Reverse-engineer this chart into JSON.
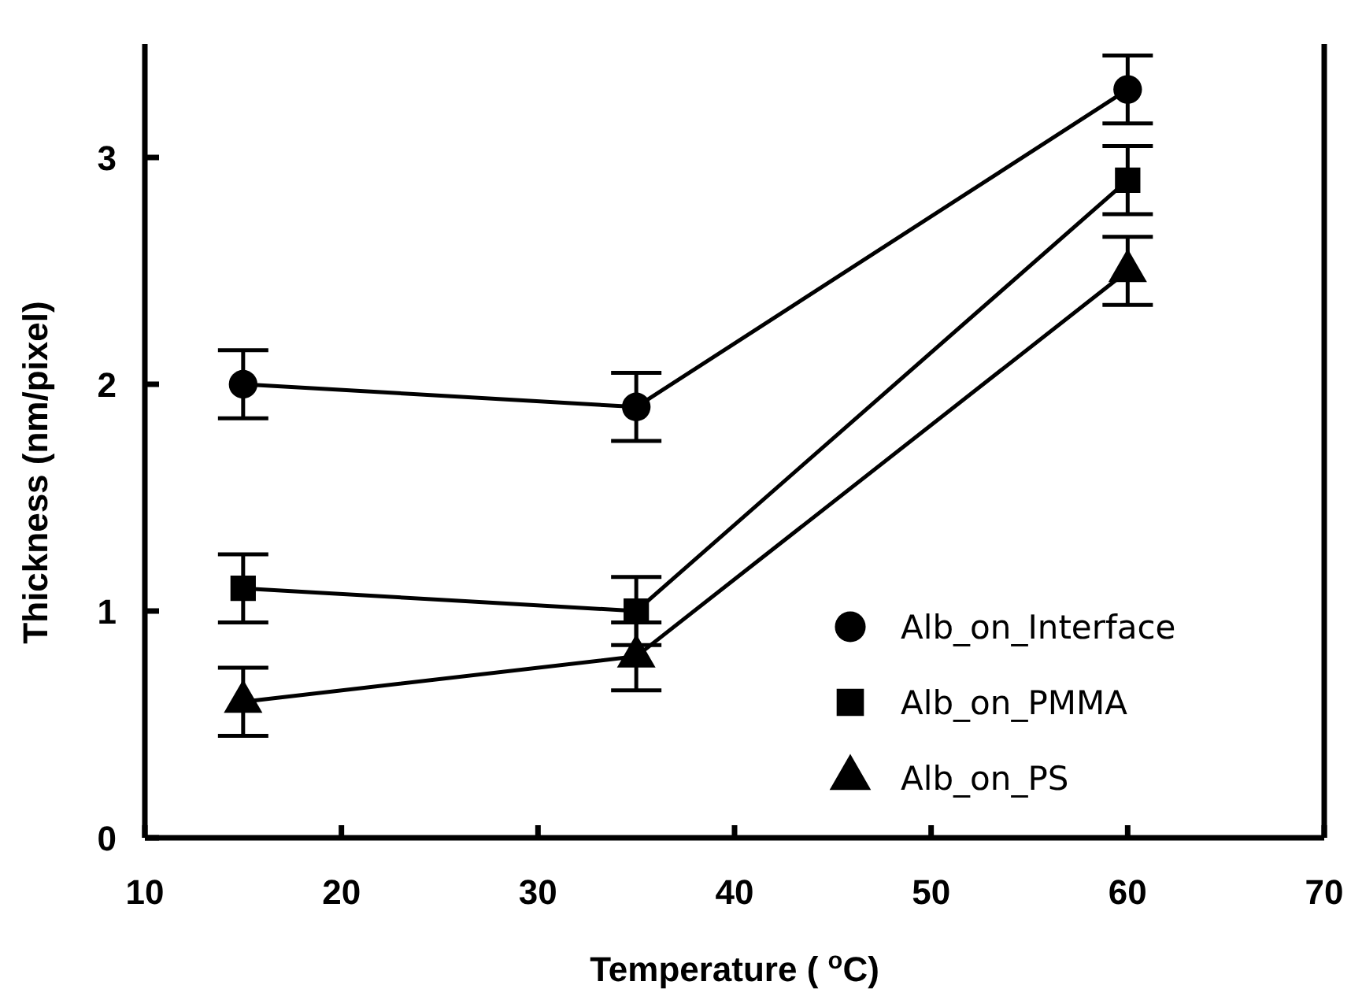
{
  "chart_data": {
    "type": "line",
    "xlabel": "Temperature ( $^{o}$C)",
    "ylabel": "Thickness (nm/pixel)",
    "x": [
      15,
      35,
      60
    ],
    "xlim": [
      10,
      70
    ],
    "xticks": [
      10,
      20,
      30,
      40,
      50,
      60,
      70
    ],
    "ylim": [
      0,
      3.5
    ],
    "yticks": [
      0,
      1,
      2,
      3
    ],
    "grid": false,
    "legend": "bottom right",
    "line_style": "solid",
    "series": [
      {
        "name": "Alb_on_Interface",
        "color": "#000000",
        "marker": "circle",
        "values": [
          2.0,
          1.9,
          3.3
        ],
        "errors": [
          0.15,
          0.15,
          0.15
        ]
      },
      {
        "name": "Alb_on_PMMA",
        "color": "#000000",
        "marker": "square",
        "values": [
          1.1,
          1.0,
          2.9
        ],
        "errors": [
          0.15,
          0.15,
          0.15
        ]
      },
      {
        "name": "Alb_on_PS",
        "color": "#000000",
        "marker": "triangle",
        "values": [
          0.6,
          0.8,
          2.5
        ],
        "errors": [
          0.15,
          0.15,
          0.15
        ]
      }
    ]
  }
}
